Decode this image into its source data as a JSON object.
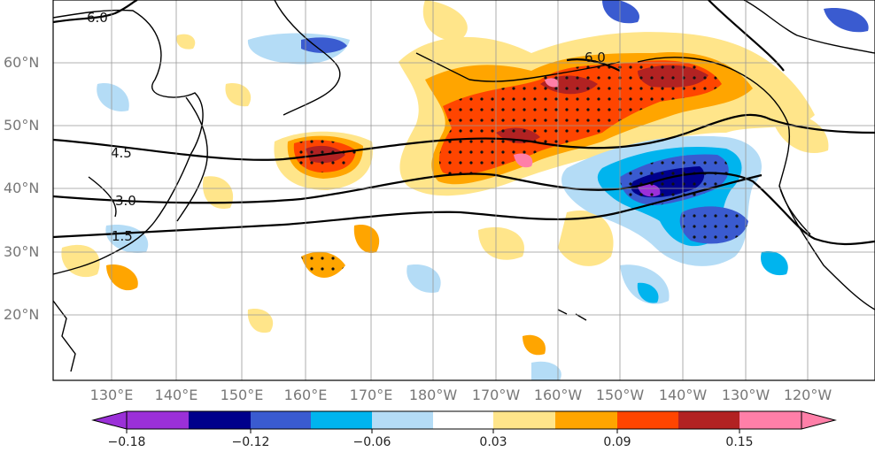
{
  "map": {
    "lat_labels": [
      "60°N",
      "50°N",
      "40°N",
      "30°N",
      "20°N"
    ],
    "lon_labels": [
      "130°E",
      "140°E",
      "150°E",
      "160°E",
      "170°E",
      "180°W",
      "170°W",
      "160°W",
      "150°W",
      "140°W",
      "130°W",
      "120°W"
    ],
    "contour_labels": [
      "6.0",
      "6.0",
      "4.5",
      "3.0",
      "1.5"
    ],
    "colorbar": {
      "tick_labels": [
        "−0.18",
        "−0.12",
        "−0.06",
        "0.03",
        "0.09",
        "0.15"
      ],
      "colors": [
        "#9b30d8",
        "#00008b",
        "#3a5bd0",
        "#00b4ee",
        "#b4dcf6",
        "#ffffff",
        "#ffe58a",
        "#ffa500",
        "#ff4500",
        "#b22222",
        "#ff7fa8"
      ]
    }
  }
}
